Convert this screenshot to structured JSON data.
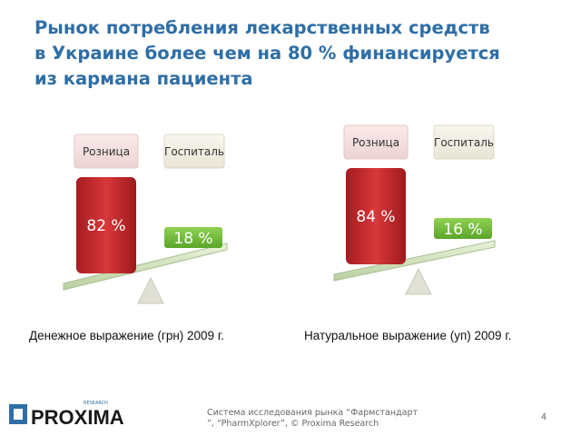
{
  "title_lines": [
    "Рынок потребления лекарственных средств",
    "в Украине более чем на 80 % финансируется",
    "из кармана пациента"
  ],
  "panels": [
    {
      "retail_label": "Розница",
      "hospital_label": "Госпиталь",
      "retail_value": "82 %",
      "hospital_value": "18 %",
      "caption": "Денежное выражение (грн) 2009 г."
    },
    {
      "retail_label": "Розница",
      "hospital_label": "Госпиталь",
      "retail_value": "84 %",
      "hospital_value": "16 %",
      "caption": "Натуральное выражение (уп) 2009 г."
    }
  ],
  "footer": {
    "logo": "PROXIMA",
    "logo_sub": "RESEARCH",
    "source_lines": [
      "Система исследования рынка “Фармстандарт",
      "”, “PharmXplorer”, © Proxima Research"
    ],
    "page": 4
  }
}
